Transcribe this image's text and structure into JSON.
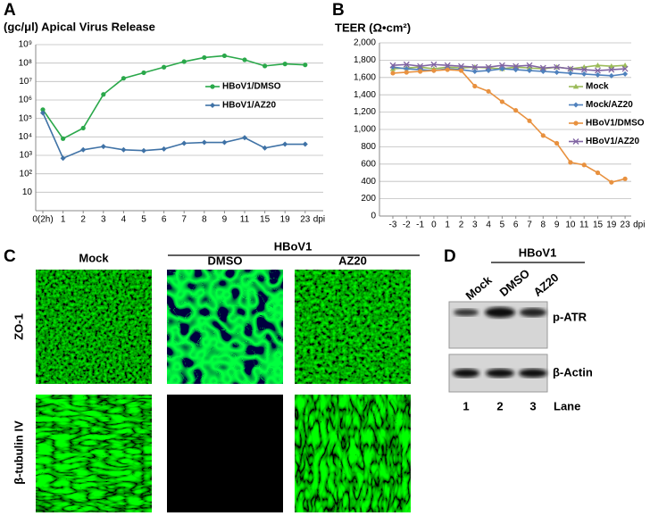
{
  "chart_data": [
    {
      "type": "line",
      "panel_label": "A",
      "title": "(gc/μl) Apical Virus Release",
      "log": true,
      "grid": true,
      "legend": "right",
      "categories": [
        "0(2h)",
        "1",
        "2",
        "3",
        "4",
        "5",
        "6",
        "7",
        "8",
        "9",
        "11",
        "15",
        "19",
        "23"
      ],
      "x_label": "dpi",
      "ylim": [
        1,
        1000000000
      ],
      "yticks": [
        10,
        {
          "value": 100,
          "label": "10²"
        },
        {
          "value": 1000,
          "label": "10³"
        },
        {
          "value": 10000,
          "label": "10⁴"
        },
        {
          "value": 100000,
          "label": "10⁵"
        },
        {
          "value": 1000000,
          "label": "10⁶"
        },
        {
          "value": 10000000,
          "label": "10⁷"
        },
        {
          "value": 100000000,
          "label": "10⁸"
        },
        {
          "value": 1000000000,
          "label": "10⁹"
        }
      ],
      "series": [
        {
          "name": "HBoV1/DMSO",
          "color": "#2aa84a",
          "marker": "circle",
          "values": [
            300000,
            8000,
            30000,
            2000000,
            15000000,
            30000000,
            60000000,
            120000000,
            200000000,
            250000000,
            150000000,
            70000000,
            90000000,
            80000000
          ]
        },
        {
          "name": "HBoV1/AZ20",
          "color": "#3f72a6",
          "marker": "diamond",
          "values": [
            200000,
            700,
            2000,
            3000,
            2000,
            1800,
            2200,
            4500,
            5000,
            5000,
            9000,
            2500,
            4000,
            4000
          ]
        }
      ]
    },
    {
      "type": "line",
      "panel_label": "B",
      "title": "TEER (Ω•cm²)",
      "log": false,
      "grid": true,
      "legend": "right",
      "categories": [
        "-3",
        "-2",
        "-1",
        "0",
        "1",
        "2",
        "3",
        "4",
        "5",
        "6",
        "7",
        "8",
        "9",
        "10",
        "11",
        "15",
        "19",
        "23"
      ],
      "x_label": "dpi",
      "ylim": [
        0,
        2000
      ],
      "yticks": [
        0,
        200,
        400,
        600,
        800,
        {
          "value": 1000,
          "label": "1,000"
        },
        {
          "value": 1200,
          "label": "1,200"
        },
        {
          "value": 1400,
          "label": "1,400"
        },
        {
          "value": 1600,
          "label": "1,600"
        },
        {
          "value": 1800,
          "label": "1,800"
        },
        {
          "value": 2000,
          "label": "2,000"
        }
      ],
      "series": [
        {
          "name": "Mock",
          "color": "#9bbb59",
          "marker": "triangle",
          "values": [
            1700,
            1710,
            1720,
            1700,
            1720,
            1710,
            1720,
            1710,
            1700,
            1720,
            1710,
            1700,
            1720,
            1700,
            1720,
            1740,
            1730,
            1740
          ]
        },
        {
          "name": "Mock/AZ20",
          "color": "#4f81bd",
          "marker": "diamond",
          "values": [
            1720,
            1700,
            1690,
            1680,
            1700,
            1690,
            1670,
            1680,
            1700,
            1690,
            1680,
            1670,
            1660,
            1650,
            1640,
            1630,
            1620,
            1640
          ]
        },
        {
          "name": "HBoV1/DMSO",
          "color": "#e8913f",
          "marker": "circle",
          "values": [
            1650,
            1660,
            1670,
            1680,
            1690,
            1680,
            1500,
            1440,
            1320,
            1220,
            1100,
            930,
            840,
            620,
            590,
            500,
            390,
            430
          ]
        },
        {
          "name": "HBoV1/AZ20",
          "color": "#8064a2",
          "marker": "x",
          "values": [
            1740,
            1750,
            1730,
            1750,
            1740,
            1730,
            1720,
            1720,
            1740,
            1730,
            1740,
            1710,
            1720,
            1700,
            1690,
            1680,
            1690,
            1700
          ]
        }
      ]
    }
  ],
  "panel_C": {
    "label": "C",
    "group": "HBoV1",
    "columns": [
      "Mock",
      "DMSO",
      "AZ20"
    ],
    "rows": [
      "ZO-1",
      "β-tubulin IV"
    ]
  },
  "panel_D": {
    "label": "D",
    "group": "HBoV1",
    "lanes": [
      "Mock",
      "DMSO",
      "AZ20"
    ],
    "blots": [
      "p-ATR",
      "β-Actin"
    ],
    "lane_numbers": [
      1,
      2,
      3
    ],
    "lane_title": "Lane"
  }
}
